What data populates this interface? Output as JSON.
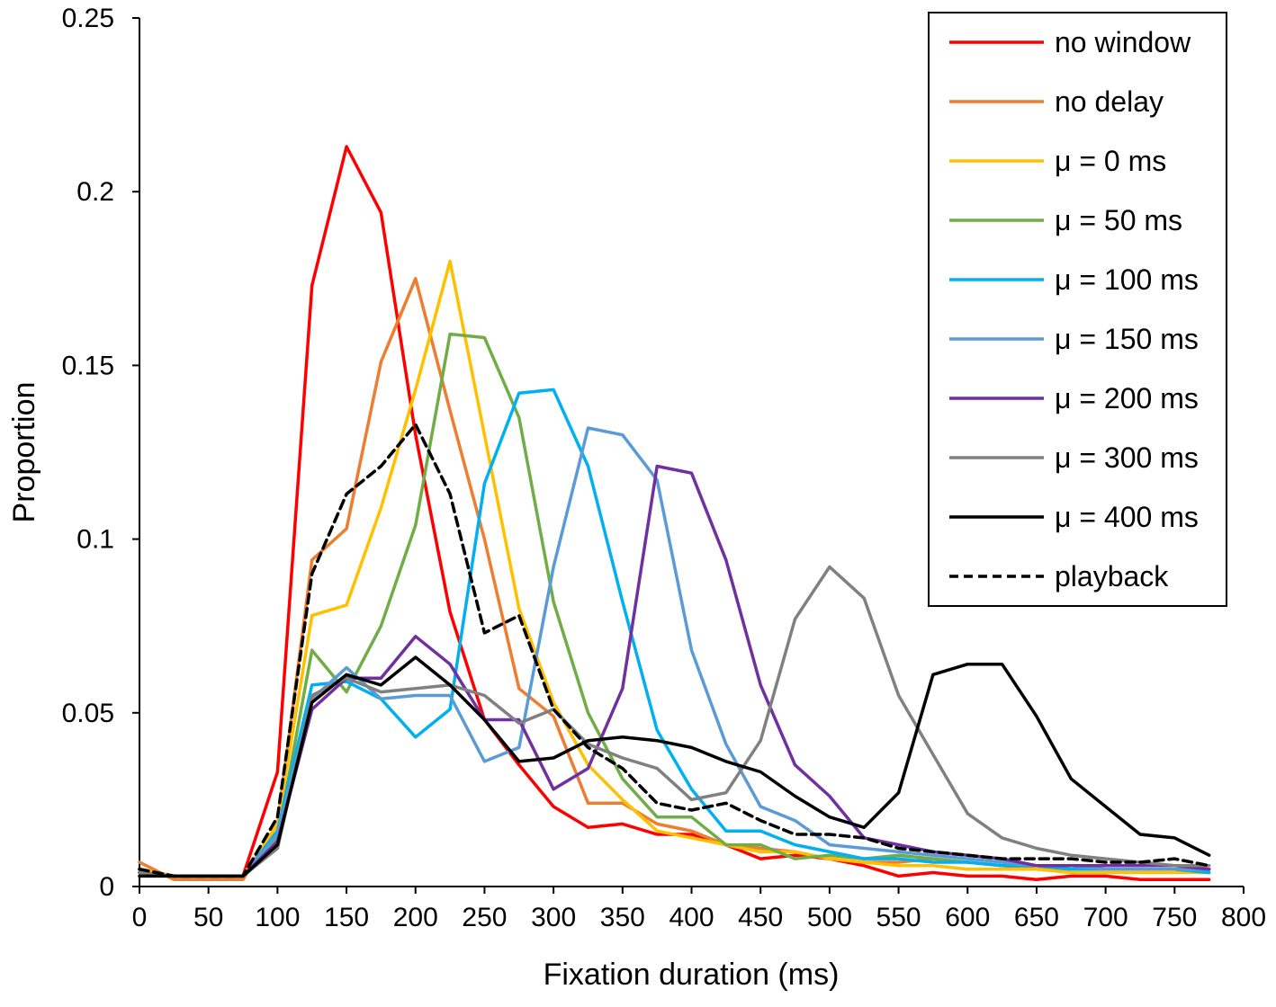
{
  "chart_data": {
    "type": "line",
    "title": "",
    "xlabel": "Fixation duration (ms)",
    "ylabel": "Proportion",
    "xlim": [
      0,
      800
    ],
    "ylim": [
      0,
      0.25
    ],
    "xticks": [
      "0",
      "50",
      "100",
      "150",
      "200",
      "250",
      "300",
      "350",
      "400",
      "450",
      "500",
      "550",
      "600",
      "650",
      "700",
      "750",
      "800"
    ],
    "yticks": [
      "0",
      "0.05",
      "0.1",
      "0.15",
      "0.2",
      "0.25"
    ],
    "grid": false,
    "legend_position": "top-right",
    "x": [
      0,
      25,
      50,
      75,
      100,
      125,
      150,
      175,
      200,
      225,
      250,
      275,
      300,
      325,
      350,
      375,
      400,
      425,
      450,
      475,
      500,
      525,
      550,
      575,
      600,
      625,
      650,
      675,
      700,
      725,
      750,
      775
    ],
    "series": [
      {
        "name": "no window",
        "color": "#ff0000",
        "dashed": false,
        "values": [
          0.005,
          0.003,
          0.003,
          0.003,
          0.033,
          0.173,
          0.213,
          0.194,
          0.13,
          0.079,
          0.048,
          0.035,
          0.023,
          0.017,
          0.018,
          0.015,
          0.015,
          0.012,
          0.008,
          0.009,
          0.008,
          0.006,
          0.003,
          0.004,
          0.003,
          0.003,
          0.002,
          0.003,
          0.003,
          0.002,
          0.002,
          0.002
        ]
      },
      {
        "name": "no delay",
        "color": "#ed7d31",
        "dashed": false,
        "values": [
          0.007,
          0.002,
          0.002,
          0.002,
          0.018,
          0.094,
          0.103,
          0.151,
          0.175,
          0.137,
          0.1,
          0.057,
          0.049,
          0.024,
          0.024,
          0.018,
          0.016,
          0.012,
          0.011,
          0.01,
          0.008,
          0.007,
          0.007,
          0.008,
          0.007,
          0.006,
          0.005,
          0.005,
          0.005,
          0.005,
          0.005,
          0.005
        ]
      },
      {
        "name": "μ = 0 ms",
        "color": "#ffc000",
        "dashed": false,
        "values": [
          0.005,
          0.003,
          0.003,
          0.003,
          0.018,
          0.078,
          0.081,
          0.109,
          0.143,
          0.18,
          0.13,
          0.08,
          0.053,
          0.035,
          0.025,
          0.016,
          0.014,
          0.012,
          0.01,
          0.01,
          0.008,
          0.007,
          0.006,
          0.006,
          0.005,
          0.005,
          0.005,
          0.004,
          0.004,
          0.004,
          0.004,
          0.004
        ]
      },
      {
        "name": "μ = 50 ms",
        "color": "#70ad47",
        "dashed": false,
        "values": [
          0.004,
          0.003,
          0.003,
          0.003,
          0.014,
          0.068,
          0.056,
          0.075,
          0.104,
          0.159,
          0.158,
          0.135,
          0.082,
          0.05,
          0.031,
          0.02,
          0.02,
          0.012,
          0.012,
          0.008,
          0.009,
          0.008,
          0.009,
          0.008,
          0.007,
          0.006,
          0.006,
          0.005,
          0.005,
          0.005,
          0.005,
          0.004
        ]
      },
      {
        "name": "μ = 100 ms",
        "color": "#00b0f0",
        "dashed": false,
        "values": [
          0.004,
          0.003,
          0.003,
          0.003,
          0.016,
          0.058,
          0.059,
          0.054,
          0.043,
          0.051,
          0.116,
          0.142,
          0.143,
          0.121,
          0.082,
          0.045,
          0.028,
          0.016,
          0.016,
          0.012,
          0.01,
          0.008,
          0.008,
          0.007,
          0.007,
          0.006,
          0.006,
          0.005,
          0.005,
          0.005,
          0.005,
          0.004
        ]
      },
      {
        "name": "μ = 150 ms",
        "color": "#5b9bd5",
        "dashed": false,
        "values": [
          0.004,
          0.003,
          0.003,
          0.003,
          0.015,
          0.054,
          0.063,
          0.054,
          0.055,
          0.055,
          0.036,
          0.04,
          0.092,
          0.132,
          0.13,
          0.117,
          0.068,
          0.041,
          0.023,
          0.019,
          0.012,
          0.011,
          0.01,
          0.009,
          0.008,
          0.007,
          0.006,
          0.006,
          0.005,
          0.005,
          0.005,
          0.005
        ]
      },
      {
        "name": "μ = 200 ms",
        "color": "#7030a0",
        "dashed": false,
        "values": [
          0.004,
          0.003,
          0.003,
          0.003,
          0.013,
          0.051,
          0.06,
          0.06,
          0.072,
          0.064,
          0.048,
          0.048,
          0.028,
          0.034,
          0.057,
          0.121,
          0.119,
          0.094,
          0.058,
          0.035,
          0.026,
          0.014,
          0.012,
          0.01,
          0.009,
          0.008,
          0.006,
          0.006,
          0.006,
          0.006,
          0.006,
          0.005
        ]
      },
      {
        "name": "μ = 300 ms",
        "color": "#808080",
        "dashed": false,
        "values": [
          0.004,
          0.003,
          0.003,
          0.003,
          0.011,
          0.055,
          0.06,
          0.056,
          0.057,
          0.058,
          0.055,
          0.047,
          0.051,
          0.041,
          0.037,
          0.034,
          0.025,
          0.027,
          0.042,
          0.077,
          0.092,
          0.083,
          0.055,
          0.038,
          0.021,
          0.014,
          0.011,
          0.009,
          0.008,
          0.007,
          0.006,
          0.006
        ]
      },
      {
        "name": "μ = 400 ms",
        "color": "#000000",
        "dashed": false,
        "values": [
          0.003,
          0.003,
          0.003,
          0.003,
          0.012,
          0.053,
          0.061,
          0.058,
          0.066,
          0.058,
          0.048,
          0.036,
          0.037,
          0.042,
          0.043,
          0.042,
          0.04,
          0.036,
          0.033,
          0.026,
          0.02,
          0.017,
          0.027,
          0.061,
          0.064,
          0.064,
          0.049,
          0.031,
          0.023,
          0.015,
          0.014,
          0.009
        ]
      },
      {
        "name": "playback",
        "color": "#000000",
        "dashed": true,
        "values": [
          0.005,
          0.003,
          0.003,
          0.003,
          0.02,
          0.09,
          0.113,
          0.121,
          0.133,
          0.113,
          0.073,
          0.078,
          0.051,
          0.04,
          0.034,
          0.024,
          0.022,
          0.024,
          0.019,
          0.015,
          0.015,
          0.014,
          0.011,
          0.01,
          0.009,
          0.008,
          0.008,
          0.008,
          0.007,
          0.007,
          0.008,
          0.006
        ]
      }
    ]
  }
}
